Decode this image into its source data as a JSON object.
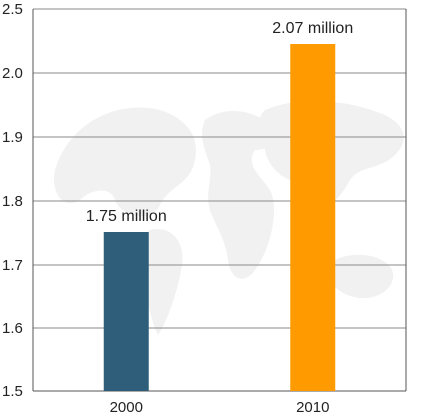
{
  "chart_data": {
    "type": "bar",
    "categories": [
      "2000",
      "2010"
    ],
    "values": [
      1.75,
      2.07
    ],
    "data_labels": [
      "1.75 million",
      "2.07 million"
    ],
    "bar_colors": [
      "#2f5e7a",
      "#ff9a00"
    ],
    "y_ticks": [
      "1.5",
      "1.6",
      "1.7",
      "1.8",
      "1.9",
      "2.0",
      "2.5"
    ],
    "ylim": [
      1.5,
      2.5
    ],
    "grid": true,
    "title": "",
    "xlabel": "",
    "ylabel": ""
  },
  "colors": {
    "gridline": "#8a8a8a",
    "axis": "#555555",
    "world_map_watermark": "#f1f1f1"
  }
}
